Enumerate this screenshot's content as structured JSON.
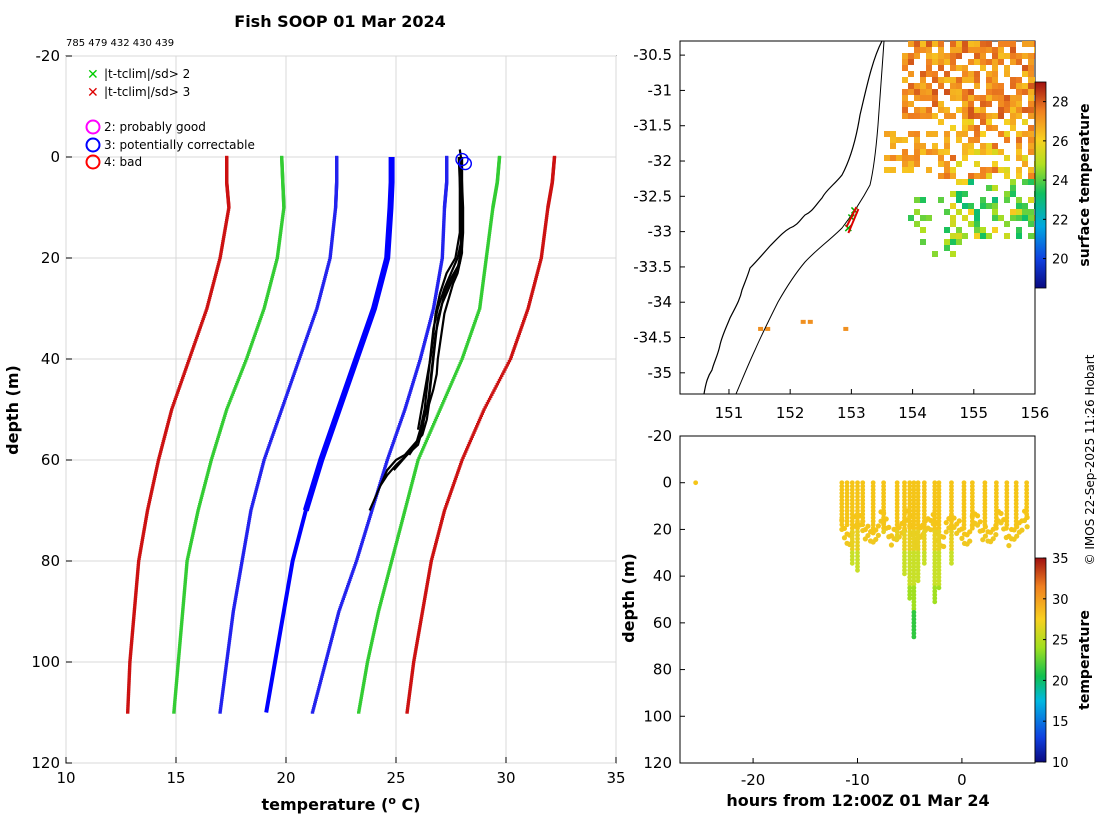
{
  "title": "Fish SOOP 01 Mar 2024",
  "subtitle": "785 479 432 430 439",
  "credit": "© IMOS 22-Sep-2025 11:26 Hobart",
  "colors": {
    "clim_mean": "#0000ff",
    "clim_sd1": "#2222ee",
    "clim_sd2": "#33cc33",
    "clim_sd3": "#cc1111",
    "profile": "#000000",
    "flag2": "#ff00ff",
    "flag3": "#0000ff",
    "flag4": "#ff0000",
    "x_gt2": "#00cc00",
    "x_gt3": "#dd0000"
  },
  "legend": {
    "tclim_gt2": "|t-tclim|/sd> 2",
    "tclim_gt3": "|t-tclim|/sd> 3",
    "flag2": "2: probably good",
    "flag3": "3: potentially correctable",
    "flag4": "4: bad"
  },
  "chart_data": [
    {
      "type": "line",
      "name": "profile-plot",
      "xlabel": "temperature (° C)",
      "ylabel": "depth (m)",
      "xlim": [
        10,
        35
      ],
      "ylim": [
        -20,
        120
      ],
      "y_reversed": true,
      "x_ticks": [
        10,
        15,
        20,
        25,
        30,
        35
      ],
      "y_ticks": [
        -20,
        0,
        20,
        40,
        60,
        80,
        100,
        120
      ],
      "grid": true,
      "legend_position": "top-left",
      "clim_depth": [
        0,
        5,
        10,
        20,
        30,
        40,
        50,
        60,
        70,
        80,
        90,
        100,
        110
      ],
      "clim_series": [
        {
          "level": "mean",
          "x": [
            24.8,
            24.8,
            24.75,
            24.6,
            24.0,
            23.2,
            22.4,
            21.6,
            20.9,
            20.3,
            19.9,
            19.5,
            19.1
          ]
        },
        {
          "level": "-1sd",
          "x": [
            22.3,
            22.3,
            22.25,
            22.0,
            21.4,
            20.6,
            19.8,
            19.0,
            18.4,
            18.0,
            17.6,
            17.3,
            17.0
          ]
        },
        {
          "level": "+1sd",
          "x": [
            27.3,
            27.3,
            27.2,
            27.1,
            26.7,
            26.1,
            25.4,
            24.6,
            23.9,
            23.2,
            22.4,
            21.8,
            21.2
          ]
        },
        {
          "level": "-2sd",
          "x": [
            19.8,
            19.85,
            19.9,
            19.6,
            19.0,
            18.2,
            17.3,
            16.6,
            16.0,
            15.5,
            15.3,
            15.1,
            14.9
          ]
        },
        {
          "level": "+2sd",
          "x": [
            29.7,
            29.6,
            29.4,
            29.1,
            28.8,
            28.0,
            27.0,
            26.0,
            25.4,
            24.8,
            24.2,
            23.7,
            23.3
          ]
        },
        {
          "level": "-3sd",
          "x": [
            17.3,
            17.3,
            17.4,
            17.0,
            16.4,
            15.6,
            14.8,
            14.2,
            13.7,
            13.3,
            13.1,
            12.9,
            12.8
          ]
        },
        {
          "level": "+3sd",
          "x": [
            32.2,
            32.1,
            31.9,
            31.6,
            31.0,
            30.2,
            29.0,
            28.0,
            27.2,
            26.6,
            26.2,
            25.8,
            25.5
          ]
        }
      ],
      "profile_series": [
        {
          "x": [
            27.9,
            27.95,
            28.0,
            28.0,
            28.0,
            28.0,
            28.0,
            27.9,
            27.8,
            27.6,
            27.4,
            27.2,
            27.1,
            27.0,
            26.9,
            26.85,
            26.7,
            26.5,
            26.4,
            26.2,
            25.8,
            25.4,
            25.0,
            24.6,
            24.4,
            24.2,
            24.0,
            23.8
          ],
          "y": [
            -1.5,
            0,
            5,
            10,
            15,
            17,
            19,
            21,
            23,
            25,
            28,
            31,
            34,
            37,
            40,
            43,
            46,
            49,
            52,
            55,
            57,
            59,
            60,
            62,
            64,
            66,
            68,
            70
          ]
        },
        {
          "x": [
            27.9,
            27.9,
            27.95,
            27.95,
            27.95,
            27.9,
            27.8,
            27.6,
            27.4,
            27.1,
            26.9,
            26.8,
            26.7,
            26.6,
            26.5,
            26.3,
            26.2,
            26.0,
            25.5,
            25.0,
            24.6,
            24.3
          ],
          "y": [
            0,
            5,
            10,
            15,
            18,
            20,
            22,
            24,
            26,
            29,
            32,
            36,
            40,
            44,
            48,
            51,
            54,
            57,
            59,
            61,
            63,
            65
          ]
        },
        {
          "x": [
            28.0,
            28.0,
            28.05,
            28.05,
            28.0,
            27.9,
            27.5,
            27.2,
            27.0,
            26.8,
            26.7,
            26.6,
            26.5,
            26.4,
            26.2,
            26.0,
            25.7,
            25.3,
            24.9
          ],
          "y": [
            0,
            5,
            10,
            15,
            18,
            21,
            24,
            27,
            31,
            35,
            39,
            43,
            47,
            50,
            53,
            56,
            58,
            60,
            62
          ]
        },
        {
          "x": [
            28.0,
            28.0,
            28.0,
            28.0,
            27.8,
            27.5,
            27.2,
            26.9,
            26.7,
            26.6,
            26.5,
            26.4,
            26.3,
            26.1,
            25.9,
            25.6
          ],
          "y": [
            0,
            5,
            10,
            16,
            20,
            23,
            26,
            30,
            34,
            38,
            42,
            46,
            50,
            54,
            57,
            59
          ]
        },
        {
          "x": [
            27.85,
            27.9,
            27.9,
            27.9,
            27.7,
            27.3,
            27.0,
            26.8,
            26.7,
            26.6,
            26.4,
            26.2,
            26.0
          ],
          "y": [
            0,
            5,
            10,
            15,
            20,
            23,
            27,
            31,
            35,
            39,
            44,
            49,
            54
          ]
        }
      ],
      "flag_points": [
        {
          "flag": 3,
          "x": 28.0,
          "y": 0.5
        },
        {
          "flag": 3,
          "x": 28.15,
          "y": 1.3
        }
      ]
    },
    {
      "type": "heatmap",
      "name": "sst-map",
      "xlim": [
        150.2,
        156.0
      ],
      "ylim": [
        -35.3,
        -30.3
      ],
      "x_ticks": [
        151,
        152,
        153,
        154,
        155,
        156
      ],
      "y_ticks": [
        -30.5,
        -31,
        -31.5,
        -32,
        -32.5,
        -33,
        -33.5,
        -34,
        -34.5,
        -35
      ],
      "colorbar_label": "surface temperature",
      "colorbar_ticks": [
        20,
        22,
        24,
        26,
        28
      ],
      "colorbar_range": [
        18.5,
        29
      ],
      "track_markers": [
        {
          "marker": "x",
          "color": "green",
          "lon": 152.95,
          "lat": -32.95
        },
        {
          "marker": "x",
          "color": "green",
          "lon": 153.0,
          "lat": -32.8
        },
        {
          "marker": "x",
          "color": "green",
          "lon": 153.05,
          "lat": -32.7
        },
        {
          "marker": "triangle",
          "color": "red",
          "lon": 153.0,
          "lat": -32.85
        }
      ]
    },
    {
      "type": "scatter",
      "name": "time-depth-plot",
      "xlabel": "hours from 12:00Z 01 Mar 24",
      "ylabel": "depth (m)",
      "xlim": [
        -27,
        7
      ],
      "ylim": [
        -20,
        120
      ],
      "y_reversed": true,
      "x_ticks": [
        -20,
        -10,
        0
      ],
      "y_ticks": [
        -20,
        0,
        20,
        40,
        60,
        80,
        100,
        120
      ],
      "colorbar_label": "temperature",
      "colorbar_ticks": [
        10,
        15,
        20,
        25,
        30,
        35
      ],
      "colorbar_range": [
        10,
        35
      ],
      "casts": [
        {
          "x": -11.5,
          "max_depth": 18
        },
        {
          "x": -11.0,
          "max_depth": 18
        },
        {
          "x": -10.5,
          "max_depth": 35
        },
        {
          "x": -10.0,
          "max_depth": 38
        },
        {
          "x": -9.5,
          "max_depth": 18
        },
        {
          "x": -8.5,
          "max_depth": 20
        },
        {
          "x": -7.5,
          "max_depth": 22
        },
        {
          "x": -6.2,
          "max_depth": 25
        },
        {
          "x": -5.5,
          "max_depth": 40
        },
        {
          "x": -5.0,
          "max_depth": 50
        },
        {
          "x": -4.6,
          "max_depth": 66
        },
        {
          "x": -4.2,
          "max_depth": 42
        },
        {
          "x": -3.6,
          "max_depth": 35
        },
        {
          "x": -2.6,
          "max_depth": 51
        },
        {
          "x": -2.2,
          "max_depth": 45
        },
        {
          "x": -1.0,
          "max_depth": 35
        },
        {
          "x": 0.2,
          "max_depth": 20
        },
        {
          "x": 1.0,
          "max_depth": 20
        },
        {
          "x": 2.2,
          "max_depth": 18
        },
        {
          "x": 3.3,
          "max_depth": 20
        },
        {
          "x": 4.3,
          "max_depth": 18
        },
        {
          "x": 5.2,
          "max_depth": 18
        },
        {
          "x": 6.2,
          "max_depth": 15
        }
      ],
      "isolated_points": [
        {
          "x": -25.5,
          "y": 0
        }
      ]
    }
  ]
}
